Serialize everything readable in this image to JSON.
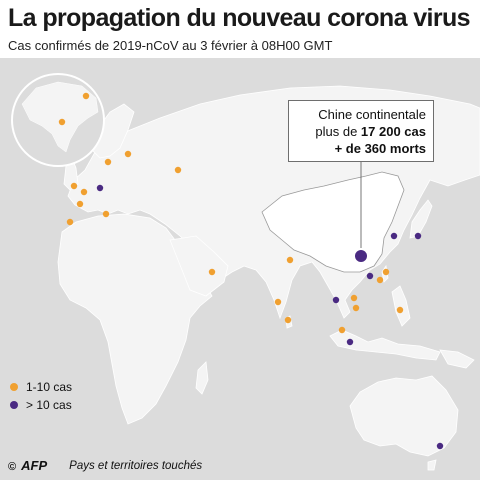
{
  "title": "La propagation du nouveau corona virus",
  "subtitle": "Cas confirmés de 2019-nCoV au 3 février à 08H00 GMT",
  "colors": {
    "ocean": "#dcdcdc",
    "land": "#f4f4f4",
    "border": "#ffffff",
    "low": "#f0a030",
    "high": "#4a2a82",
    "china": "#ffffff"
  },
  "callout": {
    "line1": "Chine continentale",
    "line2_prefix": "plus de ",
    "line2_value": "17 200 cas",
    "line3": "+ de 360 morts"
  },
  "legend": [
    {
      "label": "1-10 cas",
      "category": "low"
    },
    {
      "label": "> 10 cas",
      "category": "high"
    }
  ],
  "credit": {
    "copyright": "©",
    "agency": "AFP"
  },
  "caption": "Pays et territoires touchés",
  "markers": [
    {
      "country": "Canada",
      "category": "low"
    },
    {
      "country": "États-Unis",
      "category": "low"
    },
    {
      "country": "Finlande",
      "category": "low"
    },
    {
      "country": "Suède",
      "category": "low"
    },
    {
      "country": "Russie",
      "category": "low"
    },
    {
      "country": "Royaume-Uni",
      "category": "low"
    },
    {
      "country": "Belgique",
      "category": "low"
    },
    {
      "country": "Allemagne",
      "category": "high"
    },
    {
      "country": "France",
      "category": "low"
    },
    {
      "country": "Espagne",
      "category": "low"
    },
    {
      "country": "Italie",
      "category": "low"
    },
    {
      "country": "Émirats arabes unis",
      "category": "low"
    },
    {
      "country": "Inde",
      "category": "low"
    },
    {
      "country": "Népal",
      "category": "low"
    },
    {
      "country": "Sri Lanka",
      "category": "low"
    },
    {
      "country": "Chine continentale",
      "category": "china"
    },
    {
      "country": "Corée du Sud",
      "category": "high"
    },
    {
      "country": "Japon",
      "category": "high"
    },
    {
      "country": "Taïwan",
      "category": "low"
    },
    {
      "country": "Hong Kong",
      "category": "high"
    },
    {
      "country": "Macao",
      "category": "low"
    },
    {
      "country": "Thaïlande",
      "category": "high"
    },
    {
      "country": "Cambodge",
      "category": "low"
    },
    {
      "country": "Vietnam",
      "category": "low"
    },
    {
      "country": "Philippines",
      "category": "low"
    },
    {
      "country": "Malaisie",
      "category": "low"
    },
    {
      "country": "Singapour",
      "category": "high"
    },
    {
      "country": "Australie",
      "category": "high"
    }
  ]
}
